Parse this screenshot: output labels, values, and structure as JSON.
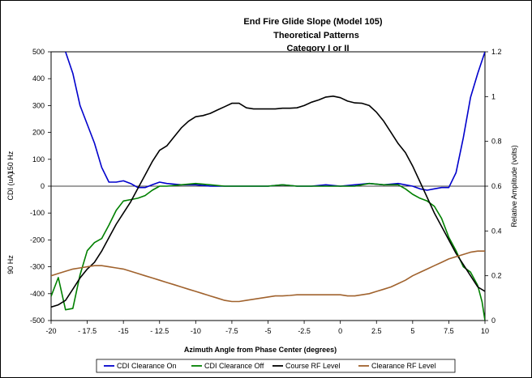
{
  "chart_data": {
    "type": "line",
    "title": "End Fire Glide Slope (Model 105)",
    "subtitle_lines": [
      "Theoretical Patterns",
      "Category I or II"
    ],
    "xlabel": "Azimuth Angle from Phase Center (degrees)",
    "ylabel_left": "CDI (uA)",
    "ylabel_left_upper": "150 Hz",
    "ylabel_left_lower": "90 Hz",
    "ylabel_right": "Relative Amplitude (volts)",
    "xlim": [
      -20,
      10
    ],
    "ylim_left": [
      -500,
      500
    ],
    "ylim_right": [
      0,
      1.2
    ],
    "x_ticks": [
      -20,
      -17.5,
      -15,
      -12.5,
      -10,
      -7.5,
      -5,
      -2.5,
      0,
      2.5,
      5,
      7.5,
      10
    ],
    "x_tick_labels": [
      "-20",
      "- 17.5",
      "-15",
      "- 12.5",
      "-10",
      "-7.5",
      "-5",
      "-2.5",
      "0",
      "2.5",
      "5",
      "7.5",
      "10"
    ],
    "y_left_ticks": [
      500,
      400,
      300,
      200,
      100,
      0,
      -100,
      -200,
      -300,
      -400,
      -500
    ],
    "y_left_tick_labels": [
      "500",
      "400",
      "300",
      "200",
      "100",
      "0",
      "-100",
      "-200",
      "-300",
      "-400",
      "-500"
    ],
    "y_right_ticks": [
      1.2,
      1,
      0.8,
      0.6,
      0.4,
      0.2,
      0
    ],
    "y_right_tick_labels": [
      "1.2",
      "1",
      "0.8",
      "0.6",
      "0.4",
      "0.2",
      "0"
    ],
    "grid": false,
    "legend_position": "bottom",
    "series": [
      {
        "name": "CDI Clearance On",
        "color": "#0000cc",
        "axis": "left",
        "x": [
          -19,
          -18.5,
          -18,
          -17.5,
          -17,
          -16.5,
          -16,
          -15.5,
          -15,
          -14.5,
          -14,
          -13.5,
          -13,
          -12.5,
          -12,
          -11,
          -10,
          -9,
          -8,
          -7,
          -6,
          -5,
          -4,
          -3,
          -2,
          -1,
          0,
          1,
          2,
          3,
          4,
          5,
          5.5,
          6,
          6.5,
          7,
          7.5,
          8,
          8.5,
          9,
          9.5,
          10
        ],
        "y": [
          500,
          420,
          300,
          230,
          160,
          70,
          15,
          15,
          20,
          10,
          -5,
          -5,
          5,
          15,
          10,
          5,
          5,
          0,
          0,
          0,
          0,
          0,
          5,
          0,
          0,
          5,
          0,
          5,
          10,
          5,
          10,
          0,
          -10,
          -15,
          -10,
          -5,
          -5,
          50,
          180,
          330,
          420,
          500
        ]
      },
      {
        "name": "CDI Clearance Off",
        "color": "#008000",
        "axis": "left",
        "x": [
          -20,
          -19.5,
          -19,
          -18.5,
          -18,
          -17.5,
          -17,
          -16.5,
          -16,
          -15.5,
          -15,
          -14.5,
          -14,
          -13.5,
          -13,
          -12.5,
          -12,
          -11,
          -10,
          -9,
          -8,
          -7,
          -6,
          -5,
          -4,
          -3,
          -2,
          -1,
          0,
          1,
          2,
          3,
          4,
          4.5,
          5,
          5.5,
          6,
          6.5,
          7,
          7.5,
          8,
          8.5,
          9,
          9.5,
          9.8,
          10
        ],
        "y": [
          -410,
          -340,
          -460,
          -455,
          -330,
          -240,
          -210,
          -195,
          -145,
          -90,
          -55,
          -50,
          -45,
          -35,
          -15,
          0,
          0,
          5,
          10,
          5,
          0,
          0,
          0,
          0,
          5,
          0,
          0,
          0,
          0,
          0,
          10,
          5,
          5,
          -10,
          -30,
          -45,
          -55,
          -75,
          -120,
          -190,
          -240,
          -300,
          -320,
          -370,
          -430,
          -500
        ]
      },
      {
        "name": "Course RF Level",
        "color": "#000000",
        "axis": "right",
        "x": [
          -20,
          -19.5,
          -19,
          -18.5,
          -18,
          -17.5,
          -17,
          -16.5,
          -16,
          -15.5,
          -15,
          -14.5,
          -14,
          -13.5,
          -13,
          -12.5,
          -12,
          -11.5,
          -11,
          -10.5,
          -10,
          -9.5,
          -9,
          -8.5,
          -8,
          -7.5,
          -7,
          -6.5,
          -6,
          -5.5,
          -5,
          -4.5,
          -4,
          -3.5,
          -3,
          -2.5,
          -2,
          -1.5,
          -1,
          -0.5,
          0,
          0.5,
          1,
          1.5,
          2,
          2.5,
          3,
          3.5,
          4,
          4.5,
          5,
          5.5,
          6,
          6.5,
          7,
          7.5,
          8,
          8.5,
          9,
          9.5,
          10
        ],
        "y": [
          0.06,
          0.07,
          0.09,
          0.14,
          0.19,
          0.23,
          0.26,
          0.31,
          0.37,
          0.43,
          0.48,
          0.53,
          0.59,
          0.65,
          0.71,
          0.76,
          0.78,
          0.82,
          0.86,
          0.89,
          0.91,
          0.915,
          0.925,
          0.94,
          0.955,
          0.97,
          0.97,
          0.95,
          0.945,
          0.945,
          0.945,
          0.945,
          0.948,
          0.948,
          0.95,
          0.96,
          0.975,
          0.985,
          0.998,
          1.002,
          0.995,
          0.98,
          0.972,
          0.97,
          0.96,
          0.93,
          0.89,
          0.84,
          0.79,
          0.75,
          0.69,
          0.62,
          0.55,
          0.48,
          0.42,
          0.36,
          0.3,
          0.25,
          0.2,
          0.15,
          0.13
        ]
      },
      {
        "name": "Clearance RF Level",
        "color": "#a0622d",
        "axis": "right",
        "x": [
          -20,
          -19.5,
          -19,
          -18.5,
          -18,
          -17.5,
          -17,
          -16.5,
          -16,
          -15.5,
          -15,
          -14.5,
          -14,
          -13.5,
          -13,
          -12.5,
          -12,
          -11.5,
          -11,
          -10.5,
          -10,
          -9.5,
          -9,
          -8.5,
          -8,
          -7.5,
          -7,
          -6.5,
          -6,
          -5.5,
          -5,
          -4.5,
          -4,
          -3.5,
          -3,
          -2.5,
          -2,
          -1.5,
          -1,
          -0.5,
          0,
          0.5,
          1,
          1.5,
          2,
          2.5,
          3,
          3.5,
          4,
          4.5,
          5,
          5.5,
          6,
          6.5,
          7,
          7.5,
          8,
          8.5,
          9,
          9.5,
          10
        ],
        "y": [
          0.2,
          0.21,
          0.22,
          0.23,
          0.235,
          0.24,
          0.245,
          0.245,
          0.24,
          0.235,
          0.23,
          0.22,
          0.21,
          0.2,
          0.19,
          0.18,
          0.17,
          0.16,
          0.15,
          0.14,
          0.13,
          0.12,
          0.11,
          0.1,
          0.09,
          0.085,
          0.085,
          0.09,
          0.095,
          0.1,
          0.105,
          0.11,
          0.11,
          0.112,
          0.115,
          0.115,
          0.115,
          0.115,
          0.115,
          0.115,
          0.115,
          0.11,
          0.11,
          0.115,
          0.12,
          0.13,
          0.14,
          0.15,
          0.165,
          0.18,
          0.2,
          0.215,
          0.23,
          0.245,
          0.26,
          0.275,
          0.285,
          0.295,
          0.305,
          0.31,
          0.31
        ]
      }
    ]
  }
}
